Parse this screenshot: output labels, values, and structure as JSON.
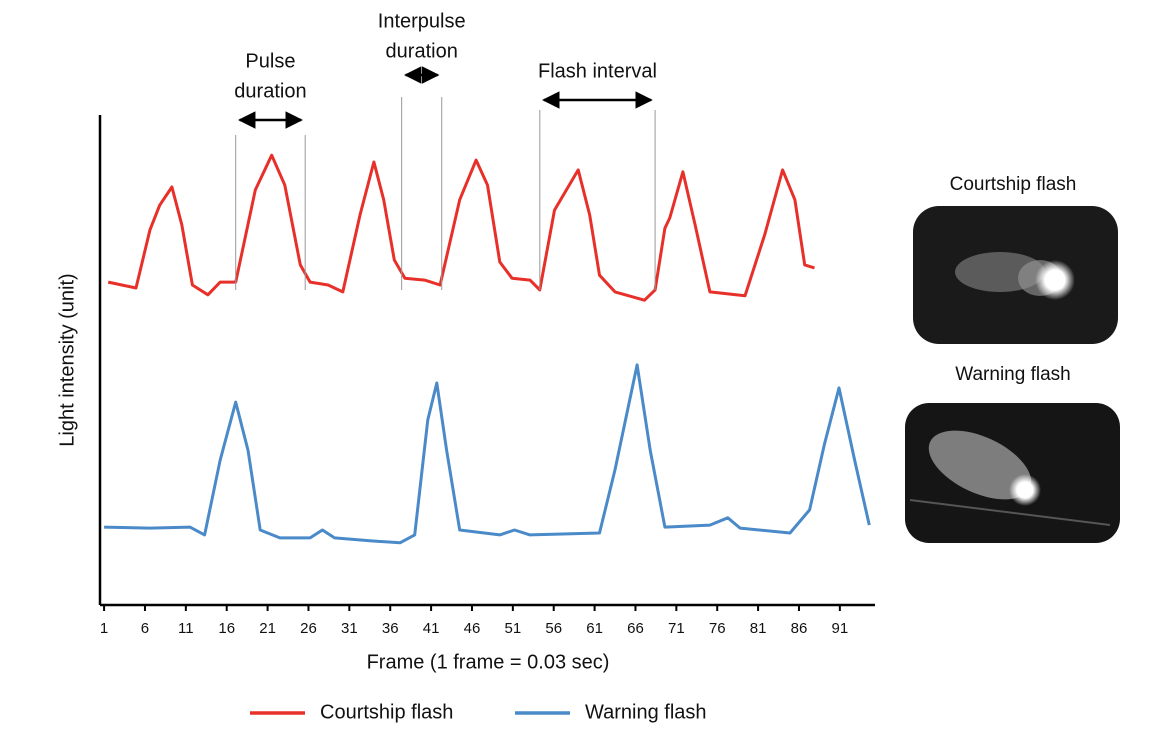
{
  "chart_data": {
    "type": "line",
    "x_label": "Frame (1 frame = 0.03 sec)",
    "y_label": "Light intensity (unit)",
    "xlim": [
      0.5,
      95.3
    ],
    "ylim": [
      0,
      100
    ],
    "xticks": [
      1,
      6,
      11,
      16,
      21,
      26,
      31,
      36,
      41,
      46,
      51,
      56,
      61,
      66,
      71,
      76,
      81,
      86,
      91
    ],
    "series": [
      {
        "name": "Courtship flash",
        "color": "#e8302a",
        "x": [
          1.5,
          4.9,
          6.6,
          7.8,
          9.3,
          10.5,
          11.8,
          13.7,
          15.2,
          17.1,
          19.5,
          21.5,
          23.1,
          25,
          26.2,
          28.4,
          30.2,
          32.3,
          34,
          35.2,
          36.5,
          37.8,
          40.2,
          42.1,
          44.5,
          46.5,
          47.9,
          49.4,
          50.9,
          53.1,
          54.3,
          56.1,
          59,
          60.4,
          61.6,
          63.5,
          67.1,
          68.4,
          69.6,
          70.2,
          71.8,
          73.3,
          75.1,
          79.4,
          81.8,
          84,
          85.5,
          86.7,
          87.9
        ],
        "values": [
          65.9,
          64.7,
          76.5,
          81.6,
          85.3,
          77.6,
          65.3,
          63.3,
          65.9,
          65.9,
          84.7,
          91.8,
          85.7,
          69.4,
          65.9,
          65.3,
          63.9,
          79.6,
          90.4,
          82.7,
          70.4,
          66.7,
          66.3,
          65.3,
          82.7,
          90.8,
          85.7,
          70,
          66.7,
          66.3,
          64.3,
          80.6,
          88.8,
          79.6,
          67.3,
          63.9,
          62.2,
          64.3,
          76.9,
          79,
          88.4,
          77.6,
          63.9,
          63.1,
          75.5,
          88.8,
          82.7,
          69.4,
          68.8
        ]
      },
      {
        "name": "Warning flash",
        "color": "#4a8ac8",
        "x": [
          1,
          6.6,
          11.5,
          13.3,
          15.2,
          17.1,
          18.6,
          20.1,
          22.5,
          26.2,
          27.7,
          29.2,
          33.5,
          37.2,
          39,
          40.6,
          41.7,
          42.9,
          44.5,
          49.4,
          51.2,
          53.1,
          61.6,
          63.5,
          66.2,
          67.8,
          69.6,
          75.1,
          77.3,
          78.8,
          84.9,
          87.3,
          89.1,
          90.9,
          92.8,
          94.6
        ],
        "values": [
          15.9,
          15.7,
          15.9,
          14.3,
          29.6,
          41.4,
          31.6,
          15.3,
          13.7,
          13.7,
          15.3,
          13.7,
          13.1,
          12.7,
          14.3,
          37.8,
          45.3,
          31.6,
          15.3,
          14.3,
          15.3,
          14.3,
          14.7,
          27.6,
          49,
          31.6,
          15.9,
          16.3,
          17.8,
          15.7,
          14.7,
          19.4,
          32.7,
          44.3,
          29.6,
          16.3
        ]
      }
    ],
    "annotations": [
      {
        "lines": [
          "Pulse",
          "duration"
        ],
        "x1": 17.1,
        "x2": 25.6
      },
      {
        "lines": [
          "Interpulse",
          "duration"
        ],
        "x1": 37.4,
        "x2": 42.3
      },
      {
        "lines": [
          "Flash interval"
        ],
        "x1": 54.3,
        "x2": 68.4
      }
    ],
    "insets": [
      {
        "title": "Courtship flash"
      },
      {
        "title": "Warning flash"
      }
    ]
  }
}
